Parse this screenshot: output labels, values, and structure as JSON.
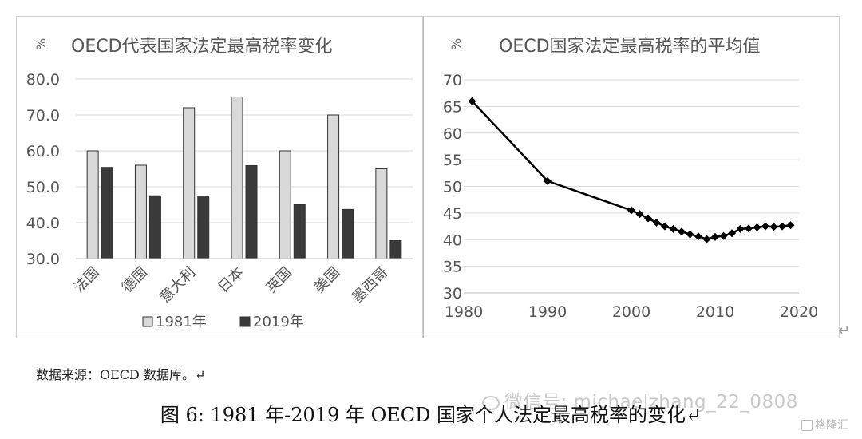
{
  "chart_data": [
    {
      "type": "bar",
      "title": "OECD代表国家法定最高税率变化",
      "title_icon": "%",
      "categories": [
        "法国",
        "德国",
        "意大利",
        "日本",
        "英国",
        "美国",
        "墨西哥"
      ],
      "series": [
        {
          "name": "1981年",
          "values": [
            60,
            56,
            72,
            75,
            60,
            70,
            55
          ],
          "color": "#d9d9d9"
        },
        {
          "name": "2019年",
          "values": [
            55.4,
            47.5,
            47.2,
            55.9,
            45,
            43.7,
            35
          ],
          "color": "#3a3a3a"
        }
      ],
      "ylim": [
        30,
        80
      ],
      "yticks": [
        "30.0",
        "40.0",
        "50.0",
        "60.0",
        "70.0",
        "80.0"
      ],
      "grid": true,
      "legend": "bottom"
    },
    {
      "type": "line",
      "title": "OECD国家法定最高税率的平均值",
      "title_icon": "%",
      "x": [
        1981,
        1990,
        2000,
        2001,
        2002,
        2003,
        2004,
        2005,
        2006,
        2007,
        2008,
        2009,
        2010,
        2011,
        2012,
        2013,
        2014,
        2015,
        2016,
        2017,
        2018,
        2019
      ],
      "y": [
        66,
        51,
        45.5,
        44.8,
        44,
        43.2,
        42.5,
        42,
        41.5,
        41,
        40.6,
        40.1,
        40.5,
        40.7,
        41.2,
        42,
        42.1,
        42.3,
        42.5,
        42.4,
        42.5,
        42.7
      ],
      "xlim": [
        1980,
        2020
      ],
      "ylim": [
        30,
        70
      ],
      "xticks": [
        "1980",
        "1990",
        "2000",
        "2010",
        "2020"
      ],
      "yticks": [
        "30",
        "35",
        "40",
        "45",
        "50",
        "55",
        "60",
        "65",
        "70"
      ],
      "grid": true,
      "color": "#000000"
    }
  ],
  "captions": {
    "source": "数据来源：OECD 数据库。↵",
    "figure": "图 6: 1981 年-2019 年 OECD 国家个人法定最高税率的变化↵",
    "watermark": "微信号: michaelzhang_22_0808",
    "brand": "格隆汇"
  },
  "return_mark": "↵"
}
